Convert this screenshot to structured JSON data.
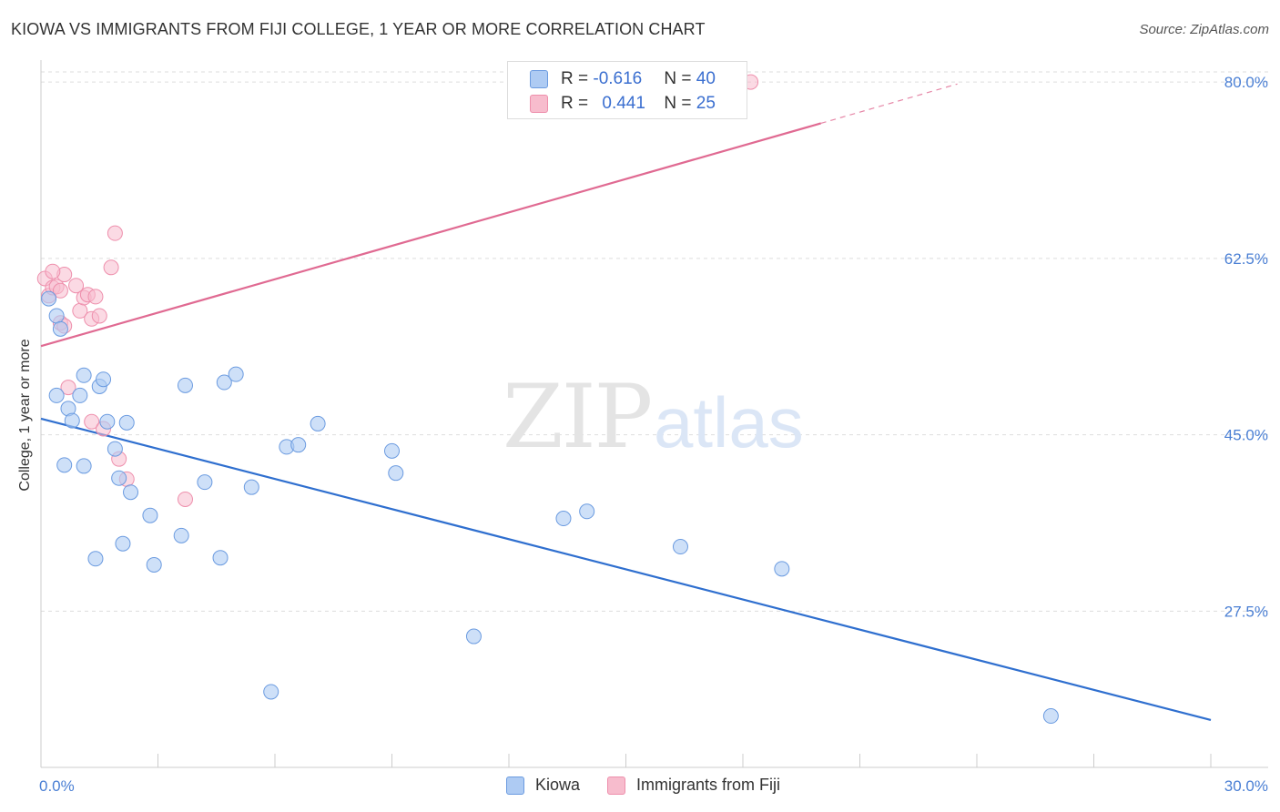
{
  "title": "KIOWA VS IMMIGRANTS FROM FIJI COLLEGE, 1 YEAR OR MORE CORRELATION CHART",
  "source": "Source: ZipAtlas.com",
  "watermark": {
    "zip": "ZIP",
    "atlas": "atlas"
  },
  "legend": {
    "rows": [
      {
        "r_label": "R = ",
        "r_value": "-0.616",
        "n_label": "N = ",
        "n_value": "40"
      },
      {
        "r_label": "R = ",
        "r_value": "0.441",
        "n_label": "N = ",
        "n_value": "25"
      }
    ]
  },
  "bottom_legend": [
    "Kiowa",
    "Immigrants from Fiji"
  ],
  "colors": {
    "kiowa_fill": "#aecbf3",
    "kiowa_stroke": "#6b9be0",
    "kiowa_line": "#2f6fcf",
    "fiji_fill": "#f7bccd",
    "fiji_stroke": "#ee8fac",
    "fiji_line": "#e06a92",
    "grid": "#dddddd",
    "tick_text": "#4a7fd4"
  },
  "chart_data": {
    "type": "scatter",
    "title": "KIOWA VS IMMIGRANTS FROM FIJI COLLEGE, 1 YEAR OR MORE CORRELATION CHART",
    "xlabel": "",
    "ylabel": "College, 1 year or more",
    "xlim": [
      0,
      30
    ],
    "ylim": [
      12,
      81
    ],
    "x_tick_labels": [
      "0.0%",
      "30.0%"
    ],
    "y_ticks": [
      80.0,
      62.5,
      45.0,
      27.5
    ],
    "y_tick_labels": [
      "80.0%",
      "62.5%",
      "45.0%",
      "27.5%"
    ],
    "grid": true,
    "legend_position": "top-center",
    "series": [
      {
        "name": "Kiowa",
        "r": -0.616,
        "n": 40,
        "points": [
          [
            0.2,
            58.5
          ],
          [
            0.4,
            56.8
          ],
          [
            0.5,
            55.5
          ],
          [
            0.4,
            48.9
          ],
          [
            0.7,
            47.6
          ],
          [
            0.8,
            46.4
          ],
          [
            1.0,
            48.9
          ],
          [
            1.1,
            50.9
          ],
          [
            1.5,
            49.8
          ],
          [
            1.6,
            50.5
          ],
          [
            1.7,
            46.3
          ],
          [
            2.2,
            46.2
          ],
          [
            1.1,
            41.9
          ],
          [
            0.6,
            42.0
          ],
          [
            1.9,
            43.6
          ],
          [
            2.0,
            40.7
          ],
          [
            2.3,
            39.3
          ],
          [
            2.8,
            37.0
          ],
          [
            2.1,
            34.2
          ],
          [
            1.4,
            32.7
          ],
          [
            2.9,
            32.1
          ],
          [
            3.6,
            35.0
          ],
          [
            3.7,
            49.9
          ],
          [
            4.2,
            40.3
          ],
          [
            4.6,
            32.8
          ],
          [
            4.7,
            50.2
          ],
          [
            5.0,
            51.0
          ],
          [
            5.4,
            39.8
          ],
          [
            5.9,
            19.5
          ],
          [
            6.3,
            43.8
          ],
          [
            6.6,
            44.0
          ],
          [
            7.1,
            46.1
          ],
          [
            9.0,
            43.4
          ],
          [
            9.1,
            41.2
          ],
          [
            11.1,
            25.0
          ],
          [
            13.4,
            36.7
          ],
          [
            14.0,
            37.4
          ],
          [
            16.4,
            33.9
          ],
          [
            19.0,
            31.7
          ],
          [
            25.9,
            17.1
          ]
        ],
        "trend": {
          "x": [
            0,
            30
          ],
          "y": [
            46.6,
            16.7
          ]
        }
      },
      {
        "name": "Immigrants from Fiji",
        "r": 0.441,
        "n": 25,
        "points": [
          [
            0.1,
            60.5
          ],
          [
            0.2,
            58.8
          ],
          [
            0.3,
            59.6
          ],
          [
            0.4,
            59.7
          ],
          [
            0.5,
            56.1
          ],
          [
            0.6,
            55.8
          ],
          [
            0.6,
            60.9
          ],
          [
            0.7,
            49.7
          ],
          [
            0.9,
            59.8
          ],
          [
            1.0,
            57.3
          ],
          [
            1.1,
            58.6
          ],
          [
            1.2,
            58.9
          ],
          [
            1.3,
            56.5
          ],
          [
            1.4,
            58.7
          ],
          [
            1.5,
            56.8
          ],
          [
            1.3,
            46.3
          ],
          [
            1.6,
            45.6
          ],
          [
            1.8,
            61.6
          ],
          [
            1.9,
            65.0
          ],
          [
            2.0,
            42.6
          ],
          [
            2.2,
            40.6
          ],
          [
            3.7,
            38.6
          ],
          [
            0.3,
            61.2
          ],
          [
            0.5,
            59.3
          ],
          [
            18.2,
            80.0
          ]
        ],
        "trend": {
          "x": [
            0,
            20
          ],
          "y": [
            53.8,
            75.9
          ]
        },
        "trend_extension": {
          "x": [
            20,
            23.5
          ],
          "y": [
            75.9,
            79.8
          ]
        }
      }
    ]
  }
}
